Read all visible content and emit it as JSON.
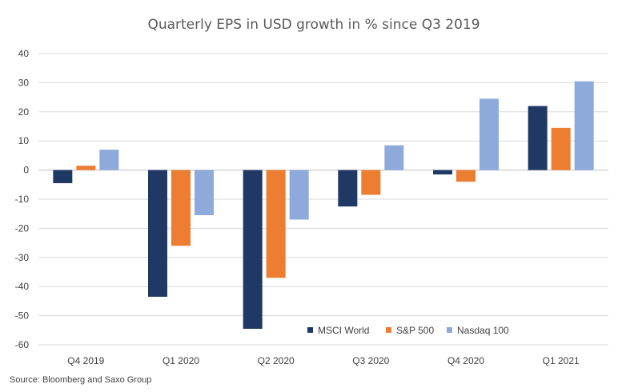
{
  "chart_data": {
    "type": "bar",
    "title": "Quarterly EPS in USD growth in % since Q3 2019",
    "categories": [
      "Q4 2019",
      "Q1 2020",
      "Q2 2020",
      "Q3 2020",
      "Q4 2020",
      "Q1 2021"
    ],
    "series": [
      {
        "name": "MSCI World",
        "color": "#203864",
        "values": [
          -4.5,
          -43.5,
          -54.5,
          -12.5,
          -1.5,
          22
        ]
      },
      {
        "name": "S&P 500",
        "color": "#ed7d31",
        "values": [
          1.5,
          -26,
          -37,
          -8.5,
          -4,
          14.5
        ]
      },
      {
        "name": "Nasdaq 100",
        "color": "#8eaadb",
        "values": [
          7,
          -15.5,
          -17,
          8.5,
          24.5,
          30.5
        ]
      }
    ],
    "ylim": [
      -60,
      40
    ],
    "yticks": [
      40,
      30,
      20,
      10,
      0,
      -10,
      -20,
      -30,
      -40,
      -50,
      -60
    ],
    "ytick_labels": [
      "40",
      "30",
      "20",
      "10",
      "0",
      "-10",
      "-20",
      "-30",
      "-40",
      "-50",
      "-60"
    ],
    "xlabel": "",
    "ylabel": "",
    "grid": true,
    "legend_position": "bottom-right",
    "source": "Source: Bloomberg and Saxo Group"
  }
}
